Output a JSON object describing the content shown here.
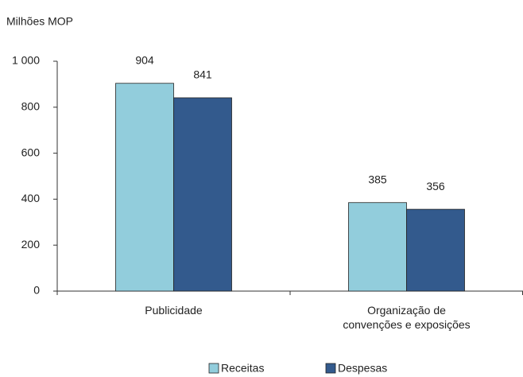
{
  "chart_data": {
    "type": "bar",
    "y_label": "Milhões MOP",
    "categories": [
      "Publicidade",
      "Organização de convenções e exposições"
    ],
    "series": [
      {
        "name": "Receitas",
        "color": "#92cddc",
        "values": [
          904,
          385
        ]
      },
      {
        "name": "Despesas",
        "color": "#335a8d",
        "values": [
          841,
          356
        ]
      }
    ],
    "ylim": [
      0,
      1000
    ],
    "yticks": [
      0,
      200,
      400,
      600,
      800,
      {
        "value": 1000,
        "label": "1 000"
      }
    ],
    "legend": "bottom"
  }
}
